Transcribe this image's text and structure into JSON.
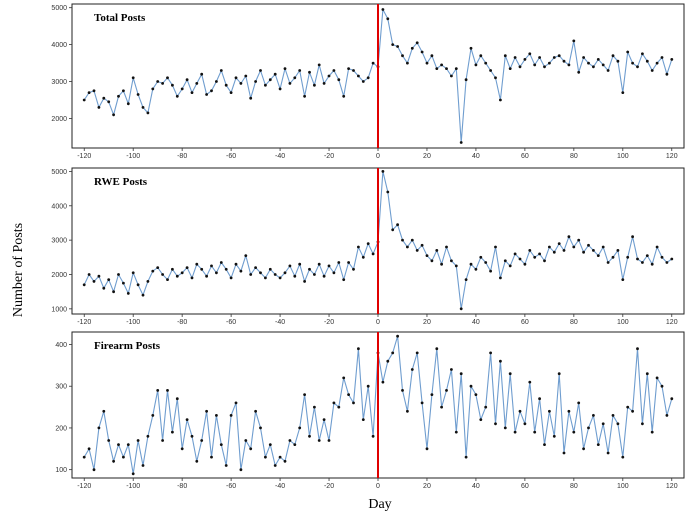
{
  "xlabel": "Day",
  "ylabel": "Number of Posts",
  "chart_data": [
    {
      "type": "line",
      "title": "Total Posts",
      "xlim": [
        -125,
        125
      ],
      "ylim": [
        1200,
        5100
      ],
      "x_ticks": [
        -120,
        -100,
        -80,
        -60,
        -40,
        -20,
        0,
        20,
        40,
        60,
        80,
        100,
        120
      ],
      "x_tick_labels": [
        "-120",
        "-100",
        "-80",
        "-60",
        "-40",
        "-20",
        "0",
        "20",
        "40",
        "60",
        "80",
        "100",
        "120"
      ],
      "y_ticks": [
        2000,
        3000,
        4000,
        5000
      ],
      "y_tick_labels": [
        "2000",
        "3000",
        "4000",
        "5000"
      ],
      "event_x": 0,
      "series": [
        {
          "x": [
            -120,
            -118,
            -116,
            -114,
            -112,
            -110,
            -108,
            -106,
            -104,
            -102,
            -100,
            -98,
            -96,
            -94,
            -92,
            -90,
            -88,
            -86,
            -84,
            -82,
            -80,
            -78,
            -76,
            -74,
            -72,
            -70,
            -68,
            -66,
            -64,
            -62,
            -60,
            -58,
            -56,
            -54,
            -52,
            -50,
            -48,
            -46,
            -44,
            -42,
            -40,
            -38,
            -36,
            -34,
            -32,
            -30,
            -28,
            -26,
            -24,
            -22,
            -20,
            -18,
            -16,
            -14,
            -12,
            -10,
            -8,
            -6,
            -4,
            -2,
            0,
            2,
            4,
            6,
            8,
            10,
            12,
            14,
            16,
            18,
            20,
            22,
            24,
            26,
            28,
            30,
            32,
            34,
            36,
            38,
            40,
            42,
            44,
            46,
            48,
            50,
            52,
            54,
            56,
            58,
            60,
            62,
            64,
            66,
            68,
            70,
            72,
            74,
            76,
            78,
            80,
            82,
            84,
            86,
            88,
            90,
            92,
            94,
            96,
            98,
            100,
            102,
            104,
            106,
            108,
            110,
            112,
            114,
            116,
            118,
            120
          ],
          "values": [
            2500,
            2700,
            2750,
            2300,
            2550,
            2450,
            2100,
            2600,
            2750,
            2400,
            3100,
            2650,
            2300,
            2150,
            2800,
            3000,
            2950,
            3100,
            2900,
            2600,
            2800,
            3050,
            2700,
            2950,
            3200,
            2650,
            2750,
            3000,
            3300,
            2900,
            2700,
            3100,
            2950,
            3150,
            2550,
            3000,
            3300,
            2900,
            3050,
            3200,
            2800,
            3350,
            2950,
            3100,
            3300,
            2600,
            3250,
            2900,
            3450,
            2950,
            3150,
            3300,
            3050,
            2600,
            3350,
            3300,
            3150,
            3000,
            3100,
            3500,
            3400,
            4950,
            4700,
            4000,
            3950,
            3700,
            3500,
            3900,
            4050,
            3800,
            3500,
            3700,
            3350,
            3450,
            3350,
            3150,
            3350,
            1350,
            3050,
            3900,
            3450,
            3700,
            3500,
            3300,
            3100,
            2500,
            3700,
            3350,
            3650,
            3400,
            3600,
            3750,
            3450,
            3650,
            3400,
            3500,
            3650,
            3700,
            3550,
            3450,
            4100,
            3250,
            3650,
            3500,
            3400,
            3600,
            3450,
            3300,
            3700,
            3550,
            2700,
            3800,
            3500,
            3400,
            3750,
            3550,
            3300,
            3500,
            3650,
            3200,
            3600
          ]
        }
      ]
    },
    {
      "type": "line",
      "title": "RWE Posts",
      "xlim": [
        -125,
        125
      ],
      "ylim": [
        850,
        5100
      ],
      "x_ticks": [
        -120,
        -100,
        -80,
        -60,
        -40,
        -20,
        0,
        20,
        40,
        60,
        80,
        100,
        120
      ],
      "x_tick_labels": [
        "-120",
        "-100",
        "-80",
        "-60",
        "-40",
        "-20",
        "0",
        "20",
        "40",
        "60",
        "80",
        "100",
        "120"
      ],
      "y_ticks": [
        1000,
        2000,
        3000,
        4000,
        5000
      ],
      "y_tick_labels": [
        "1000",
        "2000",
        "3000",
        "4000",
        "5000"
      ],
      "event_x": 0,
      "series": [
        {
          "x": [
            -120,
            -118,
            -116,
            -114,
            -112,
            -110,
            -108,
            -106,
            -104,
            -102,
            -100,
            -98,
            -96,
            -94,
            -92,
            -90,
            -88,
            -86,
            -84,
            -82,
            -80,
            -78,
            -76,
            -74,
            -72,
            -70,
            -68,
            -66,
            -64,
            -62,
            -60,
            -58,
            -56,
            -54,
            -52,
            -50,
            -48,
            -46,
            -44,
            -42,
            -40,
            -38,
            -36,
            -34,
            -32,
            -30,
            -28,
            -26,
            -24,
            -22,
            -20,
            -18,
            -16,
            -14,
            -12,
            -10,
            -8,
            -6,
            -4,
            -2,
            0,
            2,
            4,
            6,
            8,
            10,
            12,
            14,
            16,
            18,
            20,
            22,
            24,
            26,
            28,
            30,
            32,
            34,
            36,
            38,
            40,
            42,
            44,
            46,
            48,
            50,
            52,
            54,
            56,
            58,
            60,
            62,
            64,
            66,
            68,
            70,
            72,
            74,
            76,
            78,
            80,
            82,
            84,
            86,
            88,
            90,
            92,
            94,
            96,
            98,
            100,
            102,
            104,
            106,
            108,
            110,
            112,
            114,
            116,
            118,
            120
          ],
          "values": [
            1700,
            2000,
            1800,
            1950,
            1600,
            1850,
            1500,
            2000,
            1750,
            1450,
            2050,
            1700,
            1400,
            1800,
            2100,
            2200,
            2000,
            1850,
            2150,
            1950,
            2050,
            2200,
            1900,
            2300,
            2150,
            1950,
            2250,
            2050,
            2350,
            2150,
            1900,
            2300,
            2100,
            2550,
            2000,
            2200,
            2050,
            1900,
            2150,
            2000,
            1900,
            2050,
            2250,
            1950,
            2300,
            1800,
            2150,
            2000,
            2300,
            1950,
            2250,
            2050,
            2350,
            1850,
            2350,
            2150,
            2800,
            2500,
            2900,
            2600,
            2950,
            5000,
            4400,
            3300,
            3450,
            3000,
            2800,
            3000,
            2700,
            2850,
            2550,
            2400,
            2700,
            2300,
            2800,
            2400,
            2250,
            1000,
            1850,
            2300,
            2150,
            2500,
            2350,
            2100,
            2800,
            1900,
            2400,
            2250,
            2600,
            2450,
            2300,
            2700,
            2500,
            2600,
            2400,
            2800,
            2650,
            2900,
            2700,
            3100,
            2800,
            3000,
            2650,
            2850,
            2700,
            2550,
            2800,
            2350,
            2500,
            2700,
            1850,
            2500,
            3100,
            2450,
            2350,
            2550,
            2300,
            2800,
            2500,
            2350,
            2450
          ]
        }
      ]
    },
    {
      "type": "line",
      "title": "Firearm Posts",
      "xlim": [
        -125,
        125
      ],
      "ylim": [
        80,
        430
      ],
      "x_ticks": [
        -120,
        -100,
        -80,
        -60,
        -40,
        -20,
        0,
        20,
        40,
        60,
        80,
        100,
        120
      ],
      "x_tick_labels": [
        "-120",
        "-100",
        "-80",
        "-60",
        "-40",
        "-20",
        "0",
        "20",
        "40",
        "60",
        "80",
        "100",
        "120"
      ],
      "y_ticks": [
        100,
        200,
        300,
        400
      ],
      "y_tick_labels": [
        "100",
        "200",
        "300",
        "400"
      ],
      "event_x": 0,
      "series": [
        {
          "x": [
            -120,
            -118,
            -116,
            -114,
            -112,
            -110,
            -108,
            -106,
            -104,
            -102,
            -100,
            -98,
            -96,
            -94,
            -92,
            -90,
            -88,
            -86,
            -84,
            -82,
            -80,
            -78,
            -76,
            -74,
            -72,
            -70,
            -68,
            -66,
            -64,
            -62,
            -60,
            -58,
            -56,
            -54,
            -52,
            -50,
            -48,
            -46,
            -44,
            -42,
            -40,
            -38,
            -36,
            -34,
            -32,
            -30,
            -28,
            -26,
            -24,
            -22,
            -20,
            -18,
            -16,
            -14,
            -12,
            -10,
            -8,
            -6,
            -4,
            -2,
            0,
            2,
            4,
            6,
            8,
            10,
            12,
            14,
            16,
            18,
            20,
            22,
            24,
            26,
            28,
            30,
            32,
            34,
            36,
            38,
            40,
            42,
            44,
            46,
            48,
            50,
            52,
            54,
            56,
            58,
            60,
            62,
            64,
            66,
            68,
            70,
            72,
            74,
            76,
            78,
            80,
            82,
            84,
            86,
            88,
            90,
            92,
            94,
            96,
            98,
            100,
            102,
            104,
            106,
            108,
            110,
            112,
            114,
            116,
            118,
            120
          ],
          "values": [
            130,
            150,
            100,
            200,
            240,
            170,
            120,
            160,
            130,
            160,
            90,
            170,
            110,
            180,
            230,
            290,
            170,
            290,
            190,
            270,
            150,
            220,
            180,
            120,
            170,
            240,
            130,
            230,
            160,
            110,
            230,
            260,
            100,
            170,
            150,
            240,
            200,
            130,
            160,
            110,
            130,
            120,
            170,
            160,
            200,
            280,
            180,
            250,
            170,
            220,
            170,
            260,
            250,
            320,
            280,
            260,
            390,
            220,
            300,
            180,
            380,
            310,
            360,
            380,
            420,
            290,
            240,
            340,
            380,
            260,
            150,
            280,
            390,
            250,
            290,
            340,
            190,
            330,
            130,
            300,
            280,
            220,
            250,
            380,
            210,
            360,
            200,
            330,
            190,
            240,
            210,
            310,
            190,
            270,
            160,
            240,
            180,
            330,
            140,
            240,
            190,
            260,
            150,
            200,
            230,
            160,
            210,
            140,
            230,
            210,
            130,
            250,
            240,
            390,
            210,
            330,
            190,
            320,
            300,
            230,
            270
          ]
        }
      ]
    }
  ]
}
